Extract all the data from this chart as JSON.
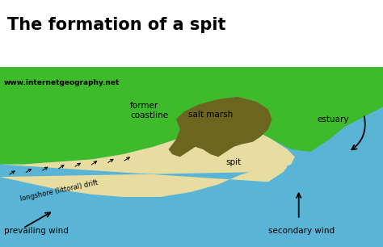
{
  "title": "The formation of a spit",
  "title_fontsize": 15,
  "website": "www.internetgeography.net",
  "bg_top": "#ffffff",
  "sea_color": "#5ab4d6",
  "land_color": "#3dbb2a",
  "sand_color": "#e8dda0",
  "salt_marsh_color": "#6b6520",
  "labels": {
    "former_coastline": "former\ncoastline",
    "salt_marsh": "salt marsh",
    "estuary": "estuary",
    "spit": "spit",
    "longshore_drift": "longshore (littoral) drift",
    "prevailing_wind": "prevailing wind",
    "secondary_wind": "secondary wind"
  }
}
